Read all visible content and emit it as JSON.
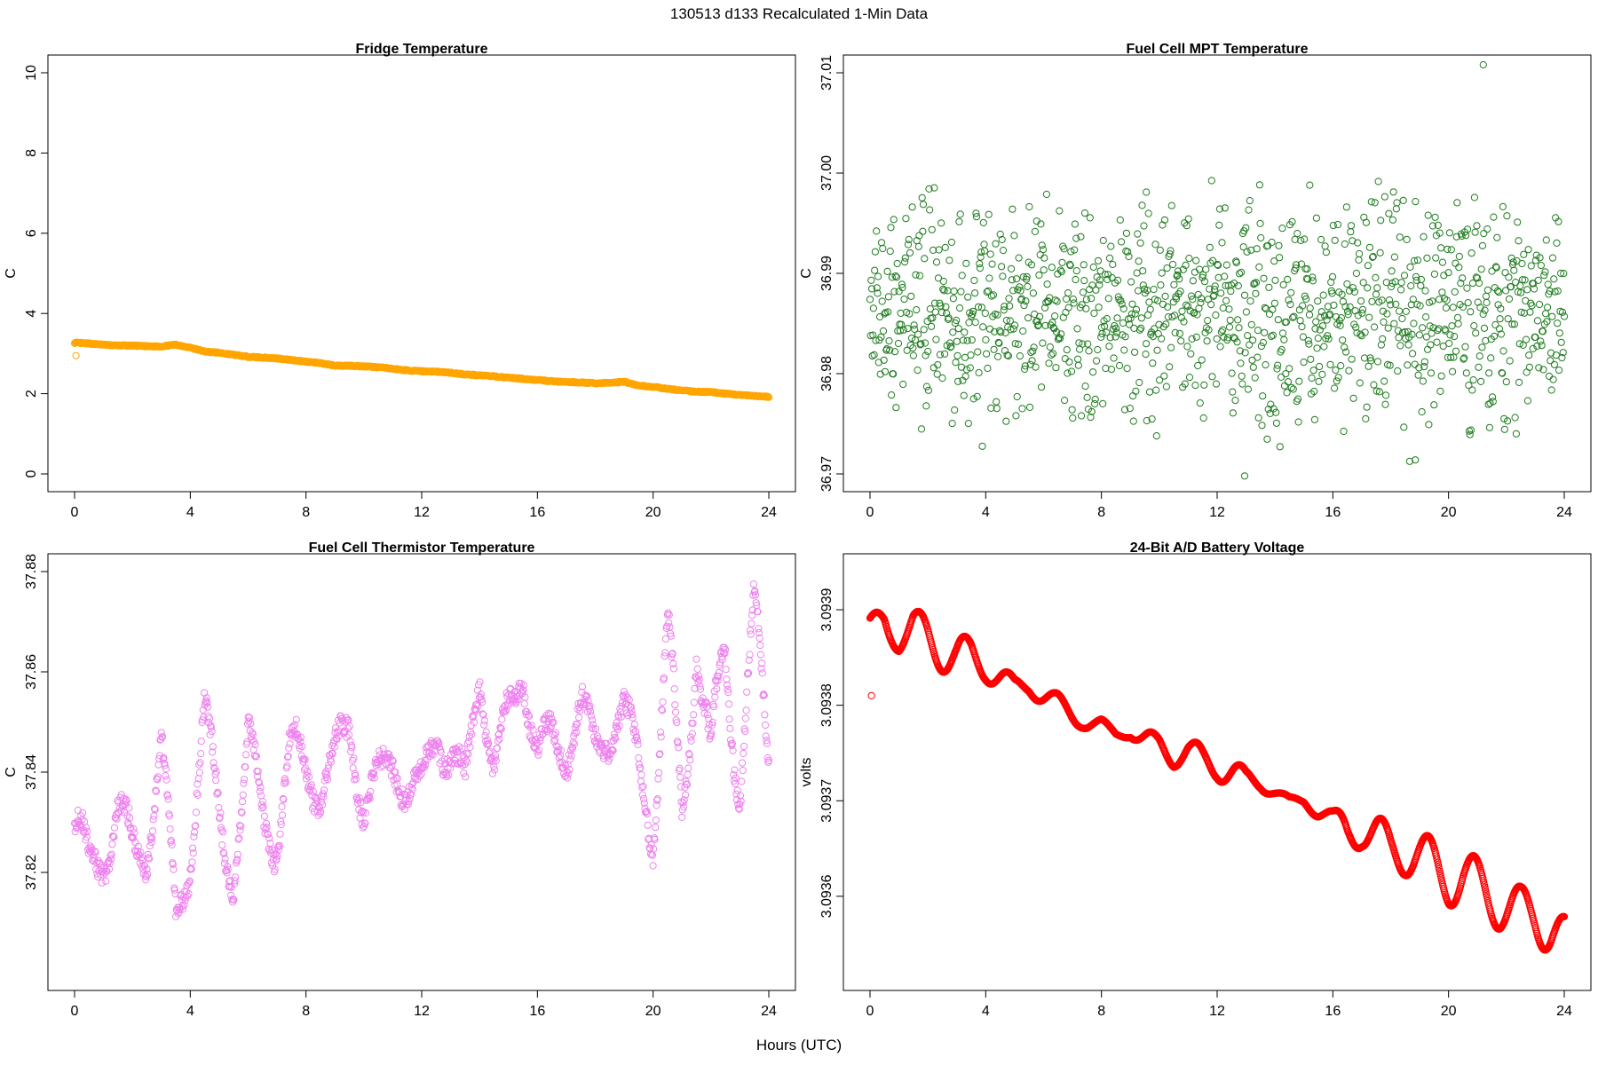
{
  "figure": {
    "title": "130513   d133   Recalculated 1-Min Data",
    "xlabel": "Hours (UTC)"
  },
  "chart_data": [
    {
      "type": "scatter",
      "title": "Fridge Temperature",
      "ylabel": "C",
      "xlim": [
        0,
        24
      ],
      "ylim": [
        0,
        10
      ],
      "x_ticks": [
        "0",
        "4",
        "8",
        "12",
        "16",
        "20",
        "24"
      ],
      "y_ticks": [
        "0",
        "2",
        "4",
        "6",
        "8",
        "10"
      ],
      "y_tick_values": [
        0,
        2,
        4,
        6,
        8,
        10
      ],
      "color": "#FFA500",
      "marker": "open-circle",
      "x": [
        0,
        0.5,
        1,
        1.5,
        2,
        2.5,
        3,
        3.5,
        4,
        4.5,
        5,
        5.5,
        6,
        6.5,
        7,
        7.5,
        8,
        8.5,
        9,
        9.5,
        10,
        10.5,
        11,
        11.5,
        12,
        12.5,
        13,
        13.5,
        14,
        14.5,
        15,
        15.5,
        16,
        16.5,
        17,
        17.5,
        18,
        18.5,
        19,
        19.5,
        20,
        20.5,
        21,
        21.5,
        22,
        22.5,
        23,
        23.5,
        24
      ],
      "y": [
        3.27,
        3.25,
        3.22,
        3.2,
        3.2,
        3.18,
        3.18,
        3.22,
        3.15,
        3.05,
        3.02,
        2.97,
        2.92,
        2.9,
        2.88,
        2.84,
        2.8,
        2.76,
        2.7,
        2.7,
        2.68,
        2.66,
        2.62,
        2.58,
        2.56,
        2.55,
        2.52,
        2.48,
        2.46,
        2.43,
        2.4,
        2.37,
        2.34,
        2.31,
        2.29,
        2.28,
        2.26,
        2.27,
        2.3,
        2.2,
        2.17,
        2.12,
        2.08,
        2.05,
        2.04,
        2.0,
        1.97,
        1.94,
        1.92
      ],
      "outliers": [
        {
          "x": 0.05,
          "y": 2.95
        }
      ]
    },
    {
      "type": "scatter",
      "title": "Fuel Cell MPT Temperature",
      "ylabel": "C",
      "xlim": [
        0,
        24
      ],
      "ylim": [
        36.97,
        37.01
      ],
      "x_ticks": [
        "0",
        "4",
        "8",
        "12",
        "16",
        "20",
        "24"
      ],
      "y_ticks": [
        "36.97",
        "36.98",
        "36.99",
        "37.00",
        "37.01"
      ],
      "y_tick_values": [
        36.97,
        36.98,
        36.99,
        37.0,
        37.01
      ],
      "color": "#1E7B1E",
      "marker": "open-circle",
      "noise_center": 36.986,
      "noise_range": [
        36.974,
        36.998
      ],
      "x": [
        0,
        0.5,
        1,
        1.5,
        2,
        2.5,
        3,
        3.5,
        4,
        4.5,
        5,
        5.5,
        6,
        6.5,
        7,
        7.5,
        8,
        8.5,
        9,
        9.5,
        10,
        10.5,
        11,
        11.5,
        12,
        12.5,
        13,
        13.5,
        14,
        14.5,
        15,
        15.5,
        16,
        16.5,
        17,
        17.5,
        18,
        18.5,
        19,
        19.5,
        20,
        20.5,
        21,
        21.5,
        22,
        22.5,
        23,
        23.5,
        24
      ],
      "y": [
        36.986,
        36.985,
        36.988,
        36.984,
        36.987,
        36.986,
        36.983,
        36.987,
        36.985,
        36.986,
        36.984,
        36.988,
        36.986,
        36.983,
        36.987,
        36.985,
        36.986,
        36.984,
        36.988,
        36.986,
        36.985,
        36.987,
        36.984,
        36.986,
        36.985,
        36.987,
        36.983,
        36.986,
        36.985,
        36.987,
        36.986,
        36.984,
        36.987,
        36.985,
        36.986,
        36.984,
        36.988,
        36.986,
        36.985,
        36.987,
        36.983,
        36.986,
        36.985,
        36.987,
        36.984,
        36.986,
        36.985,
        36.983,
        36.986
      ],
      "outliers": [
        {
          "x": 21.2,
          "y": 37.0108
        },
        {
          "x": 12.95,
          "y": 36.9698
        },
        {
          "x": 18.85,
          "y": 36.9714
        },
        {
          "x": 9.55,
          "y": 36.9981
        },
        {
          "x": 15.2,
          "y": 36.9988
        }
      ]
    },
    {
      "type": "scatter",
      "title": "Fuel Cell Thermistor Temperature",
      "ylabel": "C",
      "xlim": [
        0,
        24
      ],
      "ylim": [
        37.8,
        37.88
      ],
      "x_ticks": [
        "0",
        "4",
        "8",
        "12",
        "16",
        "20",
        "24"
      ],
      "y_ticks": [
        "37.82",
        "37.84",
        "37.86",
        "37.88"
      ],
      "y_tick_values": [
        37.82,
        37.84,
        37.86,
        37.88
      ],
      "color": "#EE82EE",
      "marker": "open-circle",
      "x": [
        0,
        0.5,
        1,
        1.5,
        2,
        2.5,
        3,
        3.5,
        4,
        4.5,
        5,
        5.5,
        6,
        6.5,
        7,
        7.5,
        8,
        8.5,
        9,
        9.5,
        10,
        10.5,
        11,
        11.5,
        12,
        12.5,
        13,
        13.5,
        14,
        14.5,
        15,
        15.5,
        16,
        16.5,
        17,
        17.5,
        18,
        18.5,
        19,
        19.5,
        20,
        20.5,
        21,
        21.5,
        22,
        22.5,
        23,
        23.5,
        24
      ],
      "y": [
        37.83,
        37.82,
        37.825,
        37.832,
        37.823,
        37.828,
        37.845,
        37.81,
        37.825,
        37.852,
        37.83,
        37.82,
        37.845,
        37.832,
        37.827,
        37.846,
        37.841,
        37.837,
        37.842,
        37.85,
        37.833,
        37.838,
        37.843,
        37.836,
        37.837,
        37.849,
        37.843,
        37.835,
        37.862,
        37.84,
        37.85,
        37.862,
        37.843,
        37.846,
        37.845,
        37.853,
        37.845,
        37.848,
        37.852,
        37.842,
        37.83,
        37.865,
        37.83,
        37.87,
        37.838,
        37.865,
        37.84,
        37.87,
        37.843
      ],
      "amplitude": [
        0.006,
        0.006,
        0.006,
        0.006,
        0.006,
        0.008,
        0.006,
        0.005,
        0.006,
        0.005,
        0.006,
        0.005,
        0.006,
        0.006,
        0.006,
        0.004,
        0.005,
        0.005,
        0.005,
        0.005,
        0.005,
        0.004,
        0.004,
        0.004,
        0.004,
        0.004,
        0.006,
        0.006,
        0.006,
        0.006,
        0.006,
        0.005,
        0.005,
        0.005,
        0.005,
        0.005,
        0.004,
        0.004,
        0.004,
        0.004,
        0.008,
        0.01,
        0.008,
        0.01,
        0.01,
        0.01,
        0.01,
        0.008,
        0.004
      ]
    },
    {
      "type": "scatter",
      "title": "24-Bit A/D Battery Voltage",
      "ylabel": "volts",
      "xlim": [
        0,
        24
      ],
      "ylim": [
        3.09352,
        3.09394
      ],
      "x_ticks": [
        "0",
        "4",
        "8",
        "12",
        "16",
        "20",
        "24"
      ],
      "y_ticks": [
        "3.0936",
        "3.0937",
        "3.0938",
        "3.0939"
      ],
      "y_tick_values": [
        3.0936,
        3.0937,
        3.0938,
        3.0939
      ],
      "color": "#FF0000",
      "marker": "open-circle",
      "x": [
        0,
        0.5,
        1,
        1.5,
        2,
        2.5,
        3,
        3.5,
        4,
        4.5,
        5,
        5.5,
        6,
        6.5,
        7,
        7.5,
        8,
        8.5,
        9,
        9.5,
        10,
        10.5,
        11,
        11.5,
        12,
        12.5,
        13,
        13.5,
        14,
        14.5,
        15,
        15.5,
        16,
        16.5,
        17,
        17.5,
        18,
        18.5,
        19,
        19.5,
        20,
        20.5,
        21,
        21.5,
        22,
        22.5,
        23,
        23.5,
        24
      ],
      "y": [
        3.09388,
        3.09389,
        3.09387,
        3.09388,
        3.09387,
        3.09386,
        3.09385,
        3.09385,
        3.09384,
        3.09383,
        3.09382,
        3.09382,
        3.09381,
        3.0938,
        3.09379,
        3.09378,
        3.09378,
        3.09377,
        3.09377,
        3.09376,
        3.09376,
        3.09375,
        3.09375,
        3.09374,
        3.09374,
        3.09373,
        3.09372,
        3.09372,
        3.09371,
        3.0937,
        3.0937,
        3.09369,
        3.09368,
        3.09367,
        3.09367,
        3.09366,
        3.09365,
        3.09365,
        3.09364,
        3.09363,
        3.09362,
        3.09362,
        3.09361,
        3.0936,
        3.09359,
        3.09358,
        3.09358,
        3.09357,
        3.09356
      ],
      "amplitude": [
        1.2e-05,
        1.8e-05,
        1.5e-05,
        2e-05,
        2.5e-05,
        2.5e-05,
        2.5e-05,
        2e-05,
        1.5e-05,
        1.5e-05,
        8e-06,
        8e-06,
        1.2e-05,
        1.2e-05,
        1e-05,
        6e-06,
        6e-06,
        4e-06,
        4e-06,
        1.2e-05,
        1.2e-05,
        1.5e-05,
        1.5e-05,
        1.8e-05,
        1.8e-05,
        1.8e-05,
        1.2e-05,
        1e-05,
        6e-06,
        4e-06,
        4e-06,
        1e-05,
        1e-05,
        2e-05,
        2e-05,
        2.5e-05,
        2.5e-05,
        2.8e-05,
        2.8e-05,
        3e-05,
        3e-05,
        3e-05,
        3e-05,
        3e-05,
        3e-05,
        3e-05,
        3e-05,
        3e-05,
        2e-05
      ],
      "outliers": [
        {
          "x": 0.05,
          "y": 3.09381
        }
      ]
    }
  ]
}
